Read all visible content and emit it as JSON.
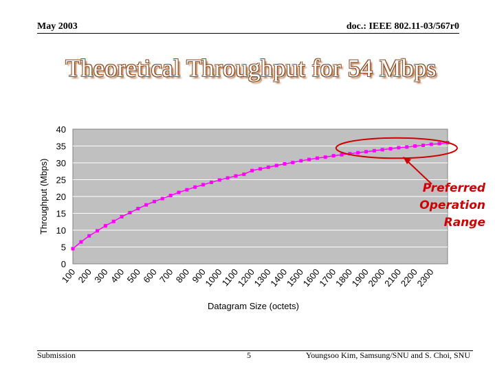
{
  "header": {
    "date": "May 2003",
    "doc_id": "doc.: IEEE 802.11-03/567r0"
  },
  "slide": {
    "title": "Theoretical Throughput for 54 Mbps"
  },
  "callout": {
    "lines": [
      "Preferred",
      "Operation",
      "Range"
    ],
    "color": "#cc0000"
  },
  "footer": {
    "left": "Submission",
    "page": "5",
    "right": "Youngsoo Kim, Samsung/SNU and S. Choi, SNU"
  },
  "chart_data": {
    "type": "line",
    "title": "",
    "xlabel": "Datagram Size (octets)",
    "ylabel": "Throughput (Mbps)",
    "ylim": [
      0,
      40
    ],
    "yticks": [
      0,
      5,
      10,
      15,
      20,
      25,
      30,
      35,
      40
    ],
    "grid": true,
    "legend": "none",
    "plot_bg_color": "#c0c0c0",
    "series_color": "#ff00ff",
    "categories": [
      "100",
      "200",
      "300",
      "400",
      "500",
      "600",
      "700",
      "800",
      "900",
      "1000",
      "1100",
      "1200",
      "1300",
      "1400",
      "1500",
      "1600",
      "1700",
      "1800",
      "1900",
      "2000",
      "2100",
      "2200",
      "2300"
    ],
    "series": [
      {
        "values": [
          4.5,
          6.5,
          8.3,
          9.8,
          11.3,
          12.6,
          14.0,
          15.2,
          16.4,
          17.5,
          18.5,
          19.4,
          20.3,
          21.2,
          22.0,
          22.8,
          23.5,
          24.2,
          24.9,
          25.5,
          26.1,
          26.6,
          27.7,
          28.2,
          28.7,
          29.2,
          29.7,
          30.1,
          30.6,
          31.0,
          31.4,
          31.7,
          32.1,
          32.4,
          32.7,
          33.0,
          33.3,
          33.6,
          33.9,
          34.2,
          34.5,
          34.7,
          35.0,
          35.2,
          35.5,
          35.7,
          36.0
        ]
      }
    ],
    "x_values": [
      100,
      150,
      200,
      250,
      300,
      350,
      400,
      450,
      500,
      550,
      600,
      650,
      700,
      750,
      800,
      850,
      900,
      950,
      1000,
      1050,
      1100,
      1150,
      1200,
      1250,
      1300,
      1350,
      1400,
      1450,
      1500,
      1550,
      1600,
      1650,
      1700,
      1750,
      1800,
      1850,
      1900,
      1950,
      2000,
      2050,
      2100,
      2150,
      2200,
      2250,
      2300,
      2350,
      2400
    ],
    "highlight_region": {
      "label": "Preferred Operation Range",
      "x_range": [
        1800,
        2400
      ],
      "y_range": [
        33,
        37
      ]
    }
  }
}
